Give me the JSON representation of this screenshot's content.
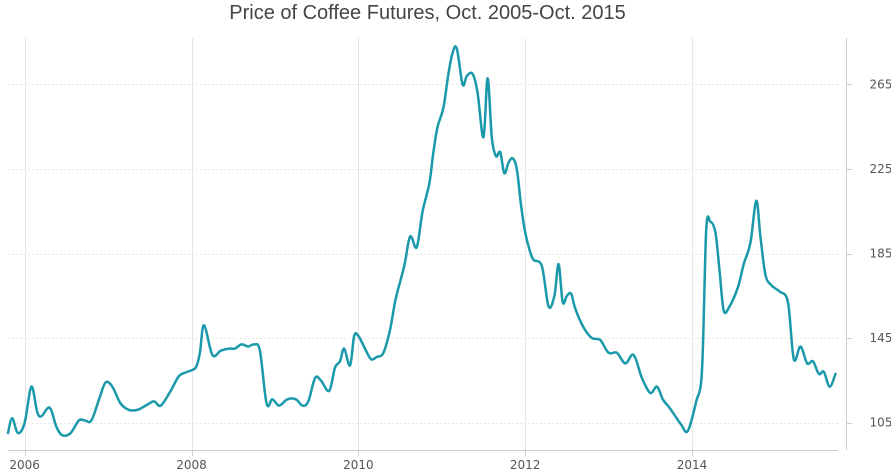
{
  "chart_data": {
    "type": "line",
    "title": "Price of Coffee Futures, Oct. 2005-Oct. 2015",
    "xlabel": "",
    "ylabel": "",
    "xlim": [
      2005.8,
      2015.75
    ],
    "ylim": [
      92,
      287
    ],
    "x_ticks": [
      2006,
      2008,
      2010,
      2012,
      2014
    ],
    "y_ticks": [
      105,
      145,
      185,
      225,
      265
    ],
    "grid": true,
    "legend": "none",
    "colors": {
      "line": "#1a99aa",
      "grid": "#e6e6e6",
      "axis": "#cccccc"
    },
    "series": [
      {
        "x": [
          2005.8,
          2005.85,
          2005.92,
          2006.0,
          2006.08,
          2006.15,
          2006.2,
          2006.3,
          2006.38,
          2006.45,
          2006.55,
          2006.65,
          2006.72,
          2006.8,
          2006.9,
          2006.97,
          2007.05,
          2007.15,
          2007.25,
          2007.35,
          2007.45,
          2007.55,
          2007.63,
          2007.75,
          2007.85,
          2007.95,
          2008.05,
          2008.1,
          2008.15,
          2008.25,
          2008.35,
          2008.45,
          2008.52,
          2008.6,
          2008.68,
          2008.75,
          2008.82,
          2008.9,
          2008.97,
          2009.05,
          2009.15,
          2009.25,
          2009.33,
          2009.4,
          2009.48,
          2009.55,
          2009.65,
          2009.72,
          2009.78,
          2009.83,
          2009.9,
          2009.95,
          2010.0,
          2010.08,
          2010.15,
          2010.22,
          2010.3,
          2010.38,
          2010.45,
          2010.55,
          2010.62,
          2010.7,
          2010.77,
          2010.85,
          2010.9,
          2010.95,
          2011.02,
          2011.08,
          2011.13,
          2011.18,
          2011.25,
          2011.3,
          2011.37,
          2011.43,
          2011.5,
          2011.55,
          2011.6,
          2011.65,
          2011.7,
          2011.75,
          2011.8,
          2011.85,
          2011.9,
          2011.95,
          2012.0,
          2012.05,
          2012.1,
          2012.2,
          2012.28,
          2012.35,
          2012.4,
          2012.45,
          2012.5,
          2012.55,
          2012.6,
          2012.7,
          2012.8,
          2012.9,
          2013.0,
          2013.1,
          2013.2,
          2013.3,
          2013.4,
          2013.5,
          2013.58,
          2013.65,
          2013.73,
          2013.8,
          2013.87,
          2013.95,
          2014.05,
          2014.12,
          2014.17,
          2014.22,
          2014.28,
          2014.33,
          2014.38,
          2014.45,
          2014.55,
          2014.62,
          2014.7,
          2014.77,
          2014.82,
          2014.88,
          2014.95,
          2015.05,
          2015.15,
          2015.22,
          2015.3,
          2015.38,
          2015.45,
          2015.52,
          2015.58,
          2015.65,
          2015.72
        ],
        "y": [
          100,
          107,
          100,
          105,
          122,
          110,
          108,
          112,
          103,
          99,
          100,
          106,
          106,
          106,
          117,
          124,
          122,
          114,
          111,
          111,
          113,
          115,
          113,
          120,
          127,
          129,
          131,
          138,
          151,
          137,
          139,
          140,
          140,
          142,
          141,
          142,
          139,
          114,
          116,
          113,
          116,
          116,
          113,
          115,
          126,
          125,
          120,
          131,
          134,
          140,
          132,
          146,
          146,
          140,
          135,
          136,
          138,
          149,
          164,
          179,
          193,
          188,
          205,
          218,
          233,
          245,
          254,
          270,
          280,
          282,
          265,
          269,
          270,
          261,
          240,
          268,
          240,
          231,
          233,
          223,
          228,
          230,
          225,
          208,
          195,
          187,
          182,
          179,
          160,
          165,
          180,
          162,
          165,
          166,
          159,
          150,
          145,
          144,
          138,
          138,
          133,
          137,
          126,
          119,
          122,
          116,
          112,
          108,
          104,
          101,
          115,
          130,
          196,
          200,
          195,
          177,
          158,
          160,
          169,
          180,
          190,
          210,
          193,
          175,
          170,
          167,
          162,
          135,
          141,
          133,
          134,
          128,
          129,
          122,
          128
        ]
      }
    ]
  }
}
